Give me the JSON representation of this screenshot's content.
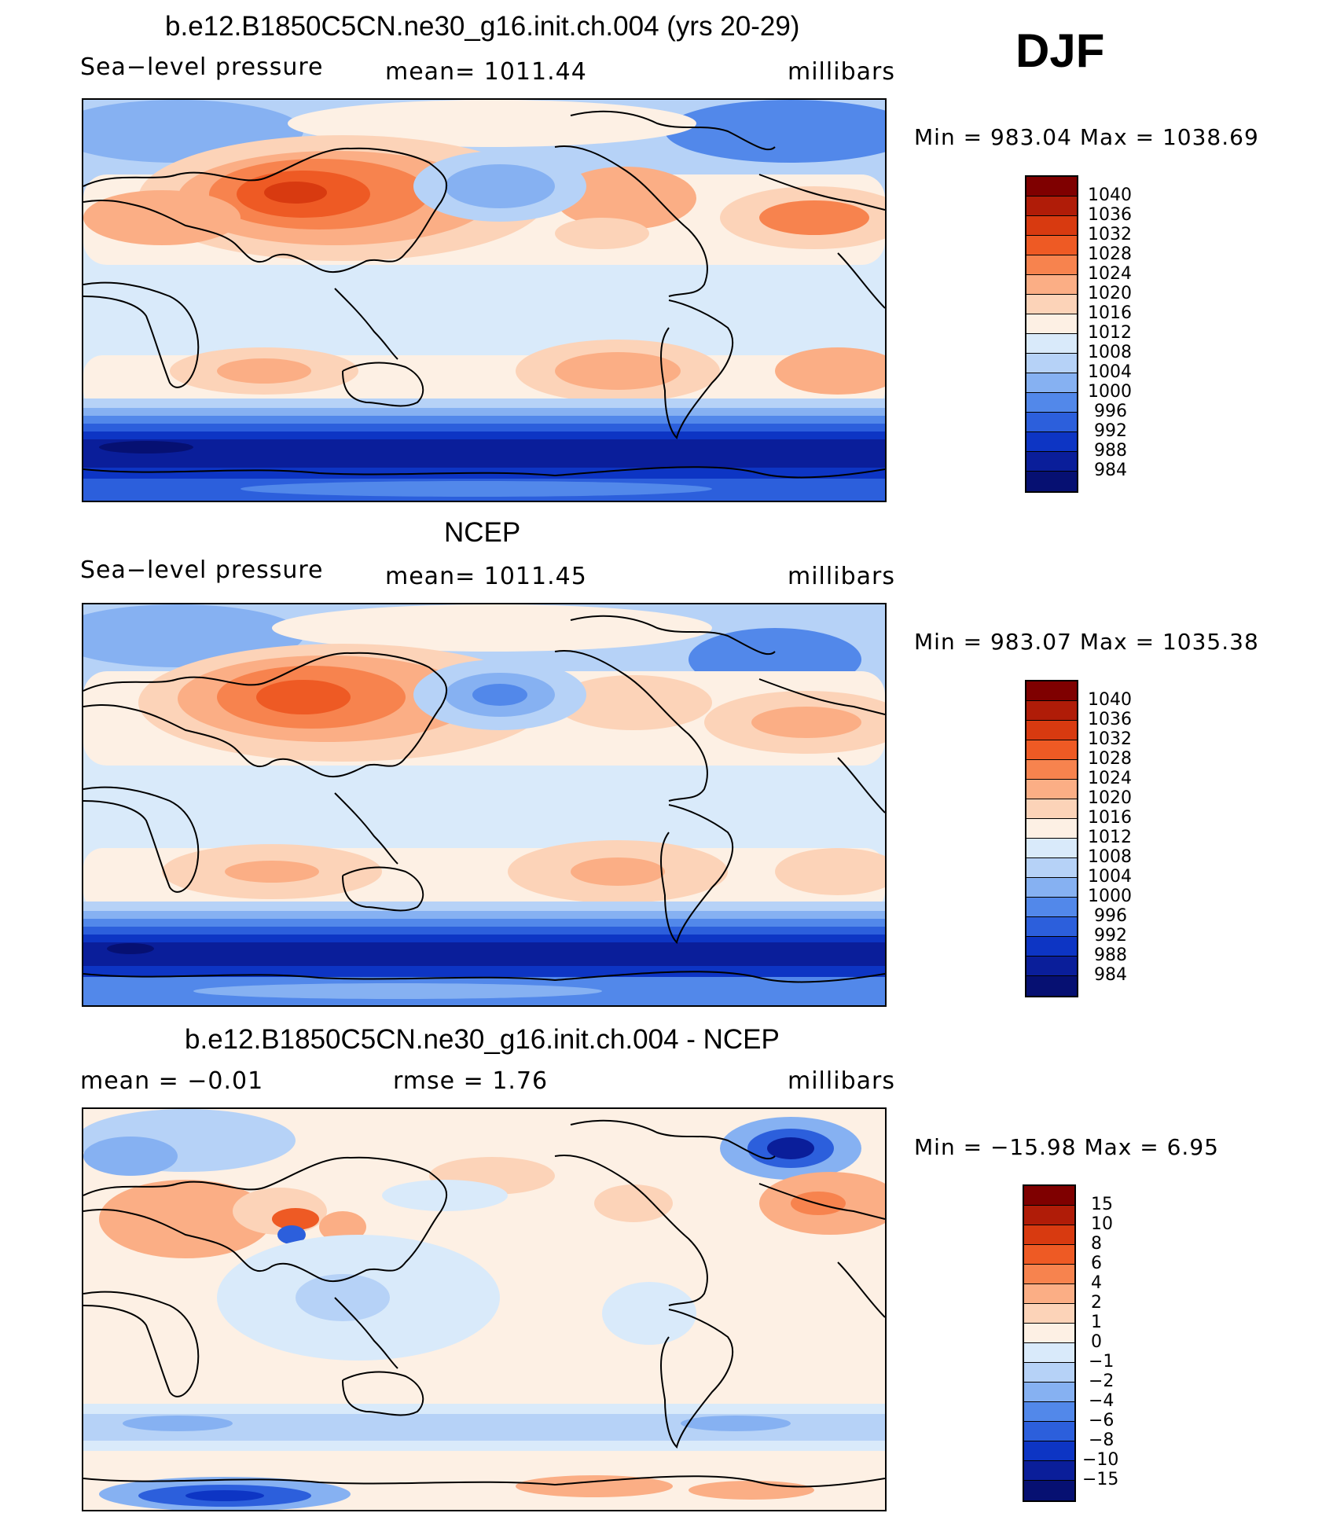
{
  "season": "DJF",
  "panels": [
    {
      "title": "b.e12.B1850C5CN.ne30_g16.init.ch.004 (yrs 20-29)",
      "left_label": "Sea−level pressure",
      "center_label": "mean=  1011.44",
      "units": "millibars",
      "minmax": "Min  =  983.04  Max  =  1038.69",
      "colorbar_labels": [
        "1040",
        "1036",
        "1032",
        "1028",
        "1024",
        "1020",
        "1016",
        "1012",
        "1008",
        "1004",
        "1000",
        "996",
        "992",
        "988",
        "984"
      ]
    },
    {
      "title": "NCEP",
      "left_label": "Sea−level pressure",
      "center_label": "mean=  1011.45",
      "units": "millibars",
      "minmax": "Min  =  983.07  Max  =  1035.38",
      "colorbar_labels": [
        "1040",
        "1036",
        "1032",
        "1028",
        "1024",
        "1020",
        "1016",
        "1012",
        "1008",
        "1004",
        "1000",
        "996",
        "992",
        "988",
        "984"
      ]
    },
    {
      "title": "b.e12.B1850C5CN.ne30_g16.init.ch.004 - NCEP",
      "left_label": "mean  =     −0.01",
      "center_label": "rmse  =     1.76",
      "units": "millibars",
      "minmax": "Min  =  −15.98  Max  =     6.95",
      "colorbar_labels": [
        "15",
        "10",
        "8",
        "6",
        "4",
        "2",
        "1",
        "0",
        "−1",
        "−2",
        "−4",
        "−6",
        "−8",
        "−10",
        "−15"
      ]
    }
  ],
  "colors": {
    "scale": [
      "#7f0000",
      "#b01c08",
      "#d83a10",
      "#ee5a24",
      "#f7834e",
      "#fbae85",
      "#fcd3b8",
      "#fdf0e4",
      "#d9eafa",
      "#b6d2f7",
      "#86b1f2",
      "#5288ea",
      "#2c5fdc",
      "#0d35c4",
      "#0a1e9a",
      "#061072"
    ],
    "ocean": "#fdf0e4",
    "coast": "#000000"
  }
}
